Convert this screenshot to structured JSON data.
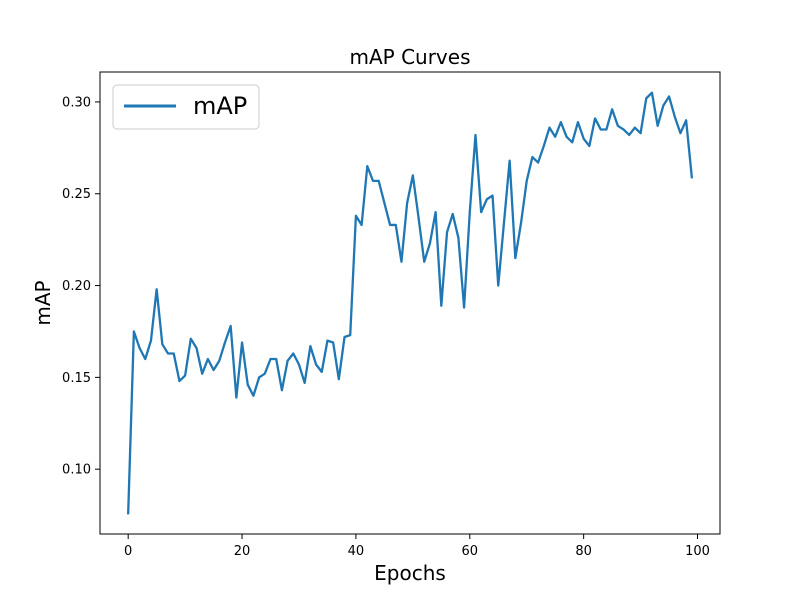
{
  "chart_data": {
    "type": "line",
    "title": "mAP Curves",
    "xlabel": "Epochs",
    "ylabel": "mAP",
    "xlim": [
      -4.95,
      103.95
    ],
    "ylim": [
      0.0647,
      0.3163
    ],
    "xticks": [
      0,
      20,
      40,
      60,
      80,
      100
    ],
    "yticks": [
      0.1,
      0.15,
      0.2,
      0.25,
      0.3
    ],
    "xtick_labels": [
      "0",
      "20",
      "40",
      "60",
      "80",
      "100"
    ],
    "ytick_labels": [
      "0.10",
      "0.15",
      "0.20",
      "0.25",
      "0.30"
    ],
    "grid": false,
    "legend_position": "top-left",
    "series": [
      {
        "name": "mAP",
        "color": "#1f77b4",
        "x": [
          0,
          1,
          2,
          3,
          4,
          5,
          6,
          7,
          8,
          9,
          10,
          11,
          12,
          13,
          14,
          15,
          16,
          17,
          18,
          19,
          20,
          21,
          22,
          23,
          24,
          25,
          26,
          27,
          28,
          29,
          30,
          31,
          32,
          33,
          34,
          35,
          36,
          37,
          38,
          39,
          40,
          41,
          42,
          43,
          44,
          45,
          46,
          47,
          48,
          49,
          50,
          51,
          52,
          53,
          54,
          55,
          56,
          57,
          58,
          59,
          60,
          61,
          62,
          63,
          64,
          65,
          66,
          67,
          68,
          69,
          70,
          71,
          72,
          73,
          74,
          75,
          76,
          77,
          78,
          79,
          80,
          81,
          82,
          83,
          84,
          85,
          86,
          87,
          88,
          89,
          90,
          91,
          92,
          93,
          94,
          95,
          96,
          97,
          98,
          99
        ],
        "y": [
          0.076,
          0.175,
          0.166,
          0.16,
          0.17,
          0.198,
          0.168,
          0.163,
          0.163,
          0.148,
          0.151,
          0.171,
          0.166,
          0.152,
          0.16,
          0.154,
          0.159,
          0.169,
          0.178,
          0.139,
          0.169,
          0.146,
          0.14,
          0.15,
          0.152,
          0.16,
          0.16,
          0.143,
          0.159,
          0.163,
          0.157,
          0.147,
          0.167,
          0.157,
          0.153,
          0.17,
          0.169,
          0.149,
          0.172,
          0.173,
          0.238,
          0.233,
          0.265,
          0.257,
          0.257,
          0.245,
          0.233,
          0.233,
          0.213,
          0.245,
          0.26,
          0.237,
          0.213,
          0.223,
          0.24,
          0.189,
          0.229,
          0.239,
          0.226,
          0.188,
          0.24,
          0.282,
          0.24,
          0.247,
          0.249,
          0.2,
          0.234,
          0.268,
          0.215,
          0.234,
          0.257,
          0.27,
          0.267,
          0.276,
          0.286,
          0.281,
          0.289,
          0.281,
          0.278,
          0.289,
          0.28,
          0.276,
          0.291,
          0.285,
          0.285,
          0.296,
          0.287,
          0.285,
          0.282,
          0.286,
          0.283,
          0.302,
          0.305,
          0.287,
          0.298,
          0.303,
          0.292,
          0.283,
          0.29,
          0.259
        ]
      }
    ]
  }
}
